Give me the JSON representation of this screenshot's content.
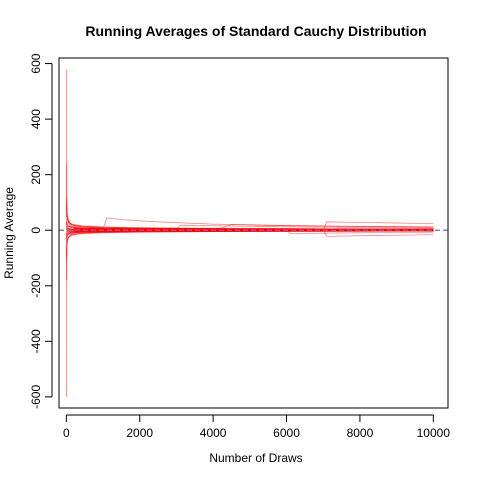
{
  "chart_data": {
    "type": "line",
    "title": "Running Averages of Standard Cauchy Distribution",
    "xlabel": "Number of Draws",
    "ylabel": "Running Average",
    "xlim": [
      -200,
      10400
    ],
    "ylim": [
      -640,
      620
    ],
    "x_ticks": [
      0,
      2000,
      4000,
      6000,
      8000,
      10000
    ],
    "y_ticks": [
      -600,
      -400,
      -200,
      0,
      200,
      400,
      600
    ],
    "grid": false,
    "legend": "none",
    "reference_line": {
      "y": 0,
      "style": "dashed",
      "color": "#6f6fd0"
    },
    "series_color": "#ff0000",
    "series_count": 30,
    "series": [
      {
        "x": [
          1,
          3,
          8,
          15,
          30,
          60,
          120,
          250,
          500,
          1000,
          2000,
          4000,
          7000,
          10000
        ],
        "y": [
          580,
          300,
          140,
          90,
          55,
          35,
          22,
          14,
          10,
          7,
          5,
          3,
          2,
          1
        ]
      },
      {
        "x": [
          1,
          3,
          8,
          15,
          30,
          60,
          120,
          250,
          500,
          1000,
          2000,
          4000,
          7000,
          10000
        ],
        "y": [
          -600,
          -280,
          -120,
          -70,
          -40,
          -25,
          -15,
          -9,
          -6,
          -4,
          -3,
          -2,
          -1,
          -1
        ]
      },
      {
        "x": [
          1,
          3,
          8,
          15,
          30,
          60,
          120,
          250,
          500,
          1000,
          2000,
          4000,
          7000,
          10000
        ],
        "y": [
          240,
          180,
          110,
          70,
          40,
          25,
          16,
          10,
          6,
          4,
          3,
          2,
          1,
          1
        ]
      },
      {
        "x": [
          1,
          3,
          8,
          15,
          30,
          60,
          120,
          250,
          500,
          1000,
          2000,
          4000,
          7000,
          10000
        ],
        "y": [
          -180,
          -120,
          -60,
          -35,
          -20,
          -12,
          -8,
          -5,
          -3,
          -2,
          -2,
          -1,
          -1,
          0
        ]
      },
      {
        "x": [
          1,
          5,
          20,
          60,
          150,
          400,
          1000,
          1100,
          1500,
          2500,
          4000,
          6000,
          8000,
          10000
        ],
        "y": [
          20,
          30,
          25,
          15,
          10,
          6,
          4,
          45,
          38,
          30,
          22,
          17,
          14,
          12
        ]
      },
      {
        "x": [
          1,
          5,
          20,
          60,
          150,
          400,
          1000,
          2000,
          3000,
          3100,
          4500,
          6000,
          8000,
          10000
        ],
        "y": [
          10,
          15,
          12,
          8,
          5,
          4,
          3,
          2,
          2,
          18,
          15,
          12,
          10,
          8
        ]
      },
      {
        "x": [
          1,
          5,
          20,
          60,
          150,
          400,
          1000,
          2000,
          4000,
          7000,
          7100,
          8000,
          9000,
          10000
        ],
        "y": [
          5,
          8,
          6,
          5,
          4,
          3,
          2,
          2,
          1,
          1,
          30,
          28,
          26,
          24
        ]
      },
      {
        "x": [
          1,
          5,
          20,
          60,
          150,
          400,
          1000,
          2000,
          4000,
          4500,
          6000,
          8000,
          10000
        ],
        "y": [
          -5,
          -8,
          -6,
          -4,
          -3,
          -2,
          -2,
          -1,
          -1,
          20,
          16,
          13,
          11
        ]
      },
      {
        "x": [
          1,
          5,
          20,
          60,
          150,
          400,
          1000,
          2000,
          4000,
          6000,
          7000,
          7100,
          8500,
          10000
        ],
        "y": [
          -10,
          -15,
          -12,
          -8,
          -5,
          -4,
          -3,
          -2,
          -2,
          -1,
          -1,
          -22,
          -19,
          -16
        ]
      },
      {
        "x": [
          1,
          5,
          20,
          60,
          150,
          400,
          1000,
          2000,
          4000,
          6000,
          6100,
          8000,
          10000
        ],
        "y": [
          0,
          4,
          3,
          2,
          2,
          1,
          1,
          1,
          0,
          0,
          -12,
          -9,
          -7
        ]
      },
      {
        "x": [
          1,
          5,
          20,
          60,
          150,
          400,
          1000,
          2000,
          4000,
          7000,
          10000
        ],
        "y": [
          60,
          50,
          40,
          30,
          22,
          16,
          12,
          9,
          7,
          5,
          4
        ]
      },
      {
        "x": [
          1,
          5,
          20,
          60,
          150,
          400,
          1000,
          2000,
          4000,
          7000,
          10000
        ],
        "y": [
          -50,
          -45,
          -35,
          -25,
          -18,
          -13,
          -9,
          -7,
          -5,
          -4,
          -3
        ]
      },
      {
        "x": [
          1,
          5,
          20,
          60,
          150,
          400,
          1000,
          2000,
          4000,
          7000,
          10000
        ],
        "y": [
          80,
          60,
          45,
          30,
          20,
          14,
          10,
          8,
          6,
          5,
          4
        ]
      },
      {
        "x": [
          1,
          5,
          20,
          60,
          150,
          400,
          1000,
          2000,
          4000,
          7000,
          10000
        ],
        "y": [
          -30,
          -25,
          -20,
          -14,
          -10,
          -7,
          -5,
          -4,
          -3,
          -2,
          -2
        ]
      },
      {
        "x": [
          1,
          5,
          20,
          60,
          150,
          400,
          1000,
          2000,
          4000,
          7000,
          10000
        ],
        "y": [
          100,
          70,
          45,
          28,
          18,
          12,
          8,
          6,
          4,
          3,
          2
        ]
      },
      {
        "x": [
          1,
          5,
          20,
          60,
          150,
          400,
          1000,
          2000,
          4000,
          7000,
          10000
        ],
        "y": [
          -90,
          -60,
          -38,
          -24,
          -15,
          -10,
          -7,
          -5,
          -3,
          -2,
          -2
        ]
      },
      {
        "x": [
          1,
          5,
          20,
          60,
          150,
          400,
          1000,
          2000,
          4000,
          7000,
          10000
        ],
        "y": [
          40,
          30,
          22,
          15,
          10,
          7,
          5,
          4,
          3,
          2,
          2
        ]
      },
      {
        "x": [
          1,
          5,
          20,
          60,
          150,
          400,
          1000,
          2000,
          4000,
          7000,
          10000
        ],
        "y": [
          -20,
          -16,
          -12,
          -9,
          -6,
          -4,
          -3,
          -2,
          -2,
          -1,
          -1
        ]
      },
      {
        "x": [
          1,
          5,
          20,
          60,
          150,
          400,
          1000,
          2000,
          4000,
          7000,
          10000
        ],
        "y": [
          15,
          12,
          9,
          6,
          4,
          3,
          2,
          2,
          1,
          1,
          1
        ]
      },
      {
        "x": [
          1,
          5,
          20,
          60,
          150,
          400,
          1000,
          2000,
          4000,
          7000,
          10000
        ],
        "y": [
          -12,
          -10,
          -8,
          -5,
          -4,
          -3,
          -2,
          -1,
          -1,
          -1,
          0
        ]
      },
      {
        "x": [
          1,
          5,
          20,
          60,
          150,
          400,
          1000,
          2000,
          4000,
          7000,
          10000
        ],
        "y": [
          30,
          26,
          20,
          16,
          12,
          10,
          8,
          7,
          6,
          5,
          5
        ]
      },
      {
        "x": [
          1,
          5,
          20,
          60,
          150,
          400,
          1000,
          2000,
          4000,
          7000,
          10000
        ],
        "y": [
          -40,
          -30,
          -20,
          -14,
          -10,
          -8,
          -6,
          -5,
          -4,
          -4,
          -3
        ]
      },
      {
        "x": [
          1,
          5,
          20,
          60,
          150,
          400,
          1000,
          2000,
          4000,
          7000,
          10000
        ],
        "y": [
          8,
          6,
          5,
          4,
          3,
          3,
          2,
          2,
          2,
          1,
          1
        ]
      },
      {
        "x": [
          1,
          5,
          20,
          60,
          150,
          400,
          1000,
          2000,
          4000,
          7000,
          10000
        ],
        "y": [
          -6,
          -5,
          -4,
          -3,
          -3,
          -2,
          -2,
          -2,
          -1,
          -1,
          -1
        ]
      },
      {
        "x": [
          1,
          5,
          20,
          60,
          150,
          400,
          1000,
          2000,
          4000,
          7000,
          10000
        ],
        "y": [
          120,
          80,
          50,
          32,
          20,
          14,
          10,
          8,
          6,
          5,
          4
        ]
      },
      {
        "x": [
          1,
          5,
          20,
          60,
          150,
          400,
          1000,
          2000,
          4000,
          7000,
          10000
        ],
        "y": [
          -110,
          -70,
          -42,
          -26,
          -16,
          -11,
          -8,
          -6,
          -4,
          -3,
          -3
        ]
      },
      {
        "x": [
          1,
          5,
          20,
          60,
          150,
          400,
          1000,
          2000,
          4000,
          7000,
          10000
        ],
        "y": [
          25,
          20,
          16,
          12,
          9,
          7,
          6,
          5,
          4,
          3,
          3
        ]
      },
      {
        "x": [
          1,
          5,
          20,
          60,
          150,
          400,
          1000,
          2000,
          4000,
          7000,
          10000
        ],
        "y": [
          -25,
          -20,
          -15,
          -11,
          -8,
          -6,
          -5,
          -4,
          -3,
          -3,
          -2
        ]
      },
      {
        "x": [
          1,
          5,
          20,
          60,
          150,
          400,
          1000,
          2000,
          4000,
          7000,
          10000
        ],
        "y": [
          3,
          2,
          2,
          1,
          1,
          1,
          1,
          1,
          0,
          0,
          0
        ]
      },
      {
        "x": [
          1,
          5,
          20,
          60,
          150,
          400,
          1000,
          2000,
          4000,
          7000,
          10000
        ],
        "y": [
          -3,
          -2,
          -2,
          -1,
          -1,
          -1,
          -1,
          0,
          0,
          0,
          0
        ]
      }
    ]
  }
}
